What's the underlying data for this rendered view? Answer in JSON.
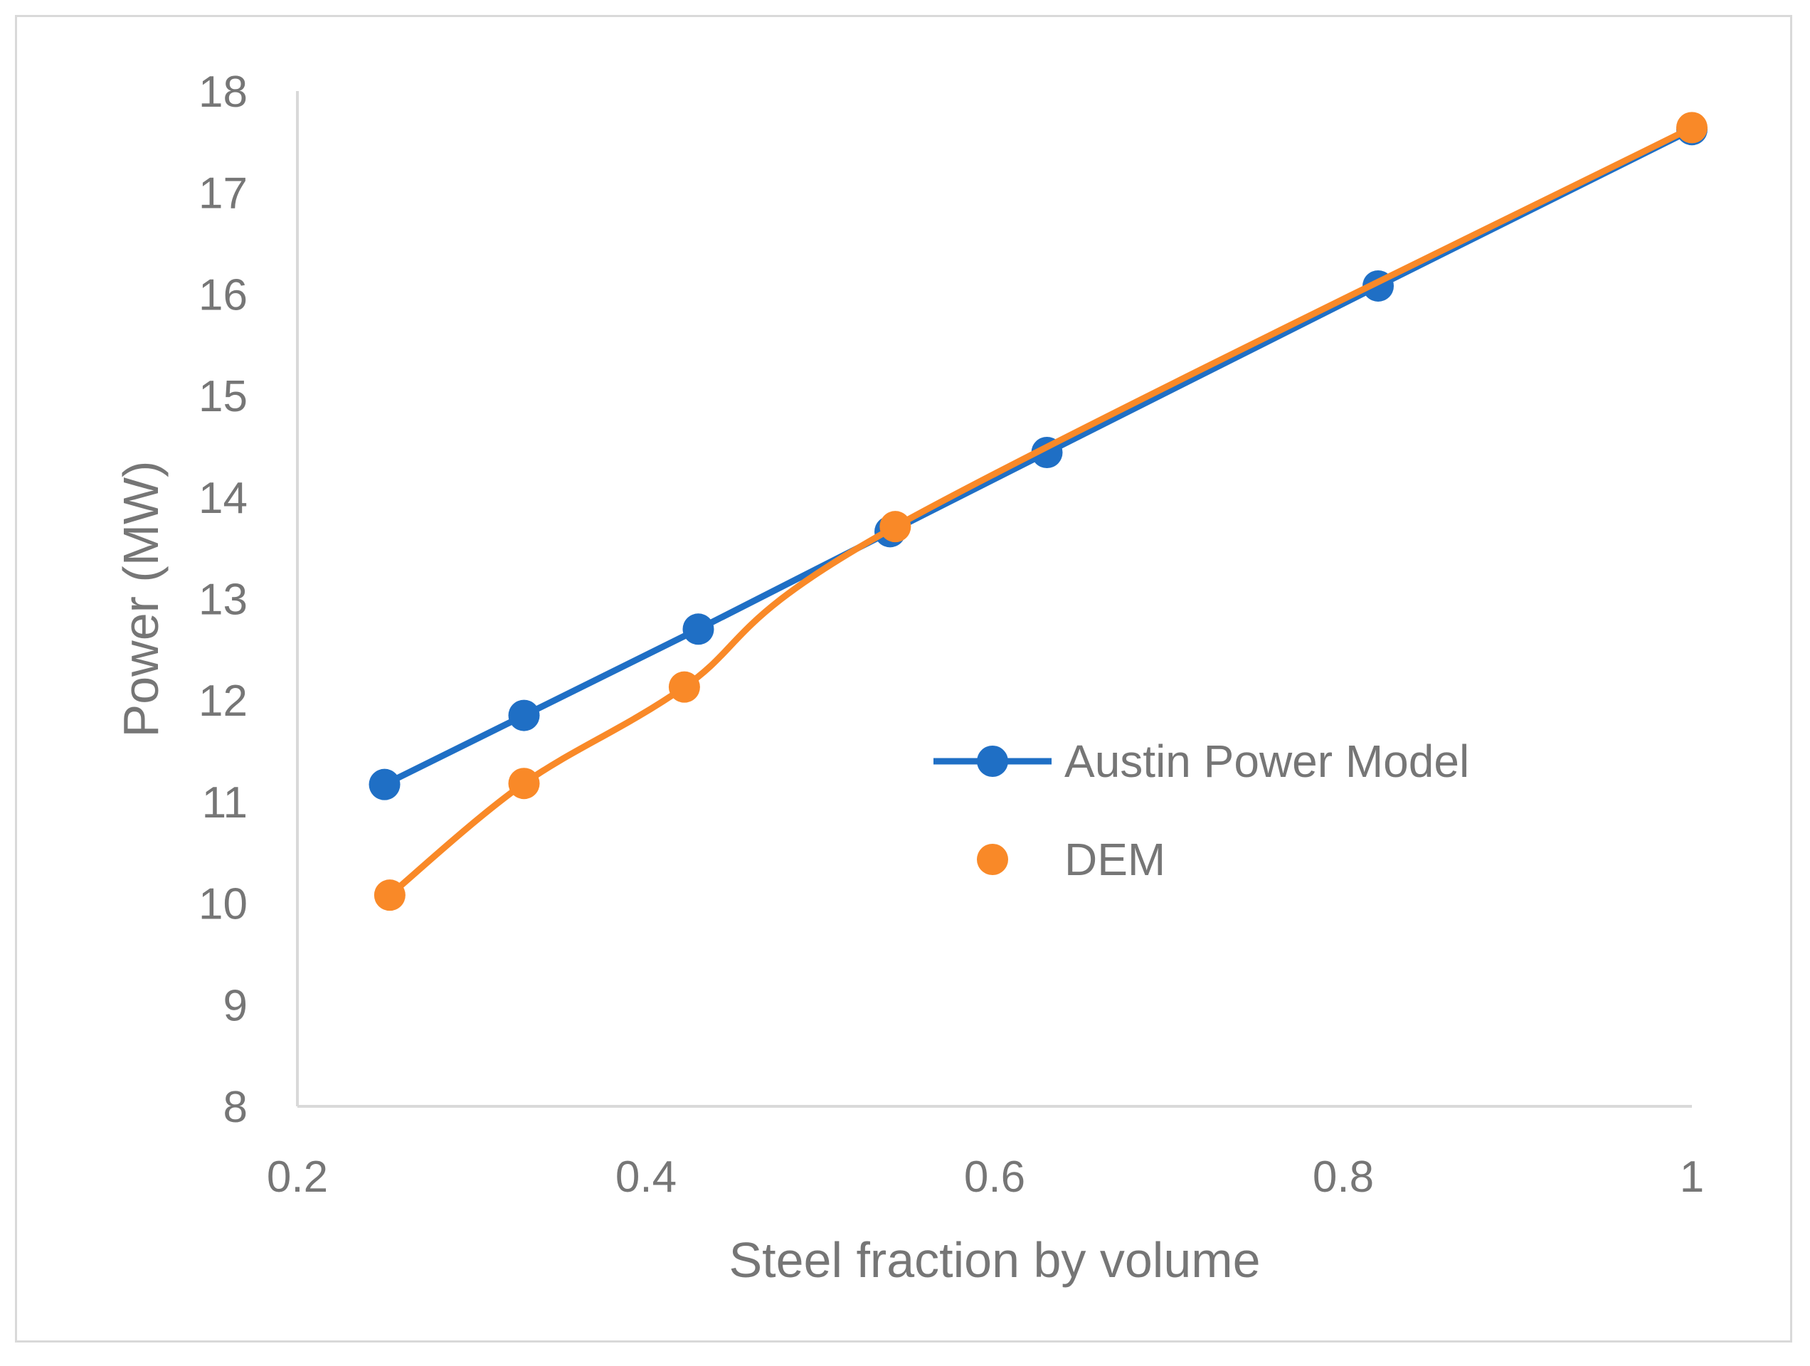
{
  "chart_data": {
    "type": "line",
    "title": "",
    "xlabel": "Steel fraction by volume",
    "ylabel": "Power (MW)",
    "xlim": [
      0.2,
      1
    ],
    "ylim": [
      8,
      18
    ],
    "x_ticks": [
      0.2,
      0.4,
      0.6,
      0.8,
      1
    ],
    "x_tick_labels": [
      "0.2",
      "0.4",
      "0.6",
      "0.8",
      "1"
    ],
    "y_ticks": [
      8,
      9,
      10,
      11,
      12,
      13,
      14,
      15,
      16,
      17,
      18
    ],
    "y_tick_labels": [
      "8",
      "9",
      "10",
      "11",
      "12",
      "13",
      "14",
      "15",
      "16",
      "17",
      "18"
    ],
    "grid": false,
    "legend_position": "right-center",
    "series": [
      {
        "name": "Austin Power Model",
        "color": "#1f6fc5",
        "smooth": false,
        "x": [
          0.25,
          0.33,
          0.43,
          0.54,
          0.63,
          0.82,
          1.0
        ],
        "y": [
          11.17,
          11.85,
          12.7,
          13.66,
          14.44,
          16.08,
          17.62
        ]
      },
      {
        "name": "DEM",
        "color": "#f98928",
        "smooth": true,
        "x": [
          0.253,
          0.33,
          0.422,
          0.543,
          1.0
        ],
        "y": [
          10.08,
          11.18,
          12.13,
          13.71,
          17.64
        ]
      }
    ]
  }
}
